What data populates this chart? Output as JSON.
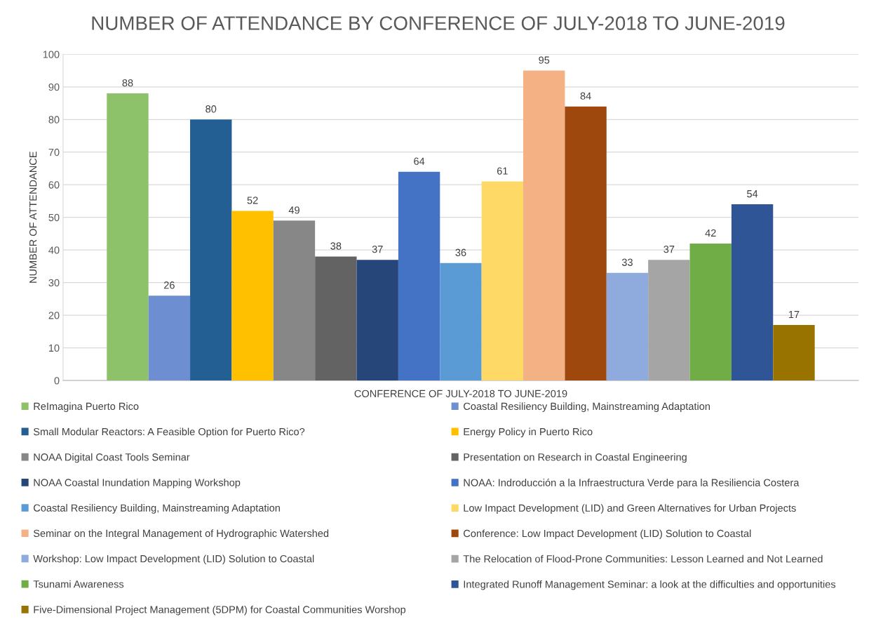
{
  "chart_data": {
    "type": "bar",
    "title": "NUMBER OF ATTENDANCE BY CONFERENCE OF JULY-2018 TO JUNE-2019",
    "xlabel": "CONFERENCE OF JULY-2018 TO JUNE-2019",
    "ylabel": "NUMBER OF ATTENDANCE",
    "categories": [
      null
    ],
    "series": [
      {
        "name": "ReImagina Puerto Rico",
        "color": "#8dc16a",
        "values": [
          88
        ]
      },
      {
        "name": "Coastal Resiliency Building, Mainstreaming Adaptation",
        "color": "#6d8fd1",
        "values": [
          26
        ]
      },
      {
        "name": "Small Modular Reactors: A Feasible Option for Puerto Rico?",
        "color": "#235f92",
        "values": [
          80
        ]
      },
      {
        "name": "Energy Policy in Puerto Rico",
        "color": "#ffc000",
        "values": [
          52
        ]
      },
      {
        "name": "NOAA Digital Coast Tools Seminar",
        "color": "#878787",
        "values": [
          49
        ]
      },
      {
        "name": "Presentation on Research in Coastal Engineering",
        "color": "#636363",
        "values": [
          38
        ]
      },
      {
        "name": "NOAA Coastal Inundation Mapping Workshop",
        "color": "#26467a",
        "values": [
          37
        ]
      },
      {
        "name": "NOAA: Indroducción a la Infraestructura Verde para la Resiliencia Costera",
        "color": "#4472c4",
        "values": [
          64
        ]
      },
      {
        "name": "Coastal Resiliency Building, Mainstreaming Adaptation",
        "color": "#5b9bd5",
        "values": [
          36
        ]
      },
      {
        "name": "Low Impact Development (LID) and Green Alternatives for Urban Projects",
        "color": "#ffd966",
        "values": [
          61
        ]
      },
      {
        "name": "Seminar on the Integral Management of Hydrographic Watershed",
        "color": "#f4b183",
        "values": [
          95
        ]
      },
      {
        "name": "Conference: Low Impact Development (LID) Solution to Coastal",
        "color": "#9e480e",
        "values": [
          84
        ]
      },
      {
        "name": "Workshop: Low Impact Development (LID) Solution to Coastal",
        "color": "#8faadc",
        "values": [
          33
        ]
      },
      {
        "name": "The Relocation of Flood-Prone Communities: Lesson Learned and Not Learned",
        "color": "#a5a5a5",
        "values": [
          37
        ]
      },
      {
        "name": "Tsunami Awareness",
        "color": "#70ad47",
        "values": [
          42
        ]
      },
      {
        "name": "Integrated Runoff Management Seminar: a look at the difficulties and opportunities",
        "color": "#2f5597",
        "values": [
          54
        ]
      },
      {
        "name": "Five-Dimensional Project Management (5DPM) for Coastal Communities Worshop",
        "color": "#997300",
        "values": [
          17
        ]
      }
    ],
    "ylim": [
      0,
      100
    ],
    "yticks": [
      0,
      10,
      20,
      30,
      40,
      50,
      60,
      70,
      80,
      90,
      100
    ],
    "grid": "y",
    "legend": "bottom",
    "data_labels": true
  }
}
